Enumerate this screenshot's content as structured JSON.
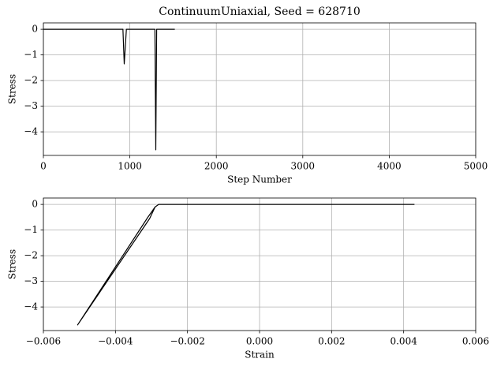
{
  "chart_data": [
    {
      "type": "line",
      "title": "ContinuumUniaxial, Seed = 628710",
      "x_label": "Step Number",
      "y_label": "Stress",
      "x": [
        0,
        920,
        935,
        960,
        1290,
        1300,
        1310,
        1520
      ],
      "values": [
        0,
        0,
        -1.35,
        0,
        0,
        -4.7,
        0,
        0
      ],
      "color": "#000000",
      "xlim": [
        0,
        5000
      ],
      "xticks": [
        0,
        1000,
        2000,
        3000,
        4000,
        5000
      ],
      "ylim": [
        -4.92,
        0.25
      ],
      "yticks": [
        0,
        {
          "value": -1,
          "label": "−1"
        },
        {
          "value": -2,
          "label": "−2"
        },
        {
          "value": -3,
          "label": "−3"
        },
        {
          "value": -4,
          "label": "−4"
        }
      ],
      "grid": true
    },
    {
      "type": "line",
      "x_label": "Strain",
      "y_label": "Stress",
      "x": [
        0.0043,
        -0.0028,
        -0.0029,
        -0.0031,
        -0.00505,
        -0.00305,
        -0.0029,
        -0.0028,
        0.0043
      ],
      "values": [
        0,
        0,
        -0.1,
        -0.5,
        -4.7,
        -0.55,
        -0.1,
        0,
        0
      ],
      "color": "#000000",
      "xlim": [
        -0.006,
        0.006
      ],
      "xticks": [
        {
          "value": -0.006,
          "label": "−0.006"
        },
        {
          "value": -0.004,
          "label": "−0.004"
        },
        {
          "value": -0.002,
          "label": "−0.002"
        },
        {
          "value": 0,
          "label": "0.000"
        },
        {
          "value": 0.002,
          "label": "0.002"
        },
        {
          "value": 0.004,
          "label": "0.004"
        },
        {
          "value": 0.006,
          "label": "0.006"
        }
      ],
      "ylim": [
        -4.92,
        0.25
      ],
      "yticks": [
        0,
        {
          "value": -1,
          "label": "−1"
        },
        {
          "value": -2,
          "label": "−2"
        },
        {
          "value": -3,
          "label": "−3"
        },
        {
          "value": -4,
          "label": "−4"
        }
      ],
      "grid": true
    }
  ]
}
